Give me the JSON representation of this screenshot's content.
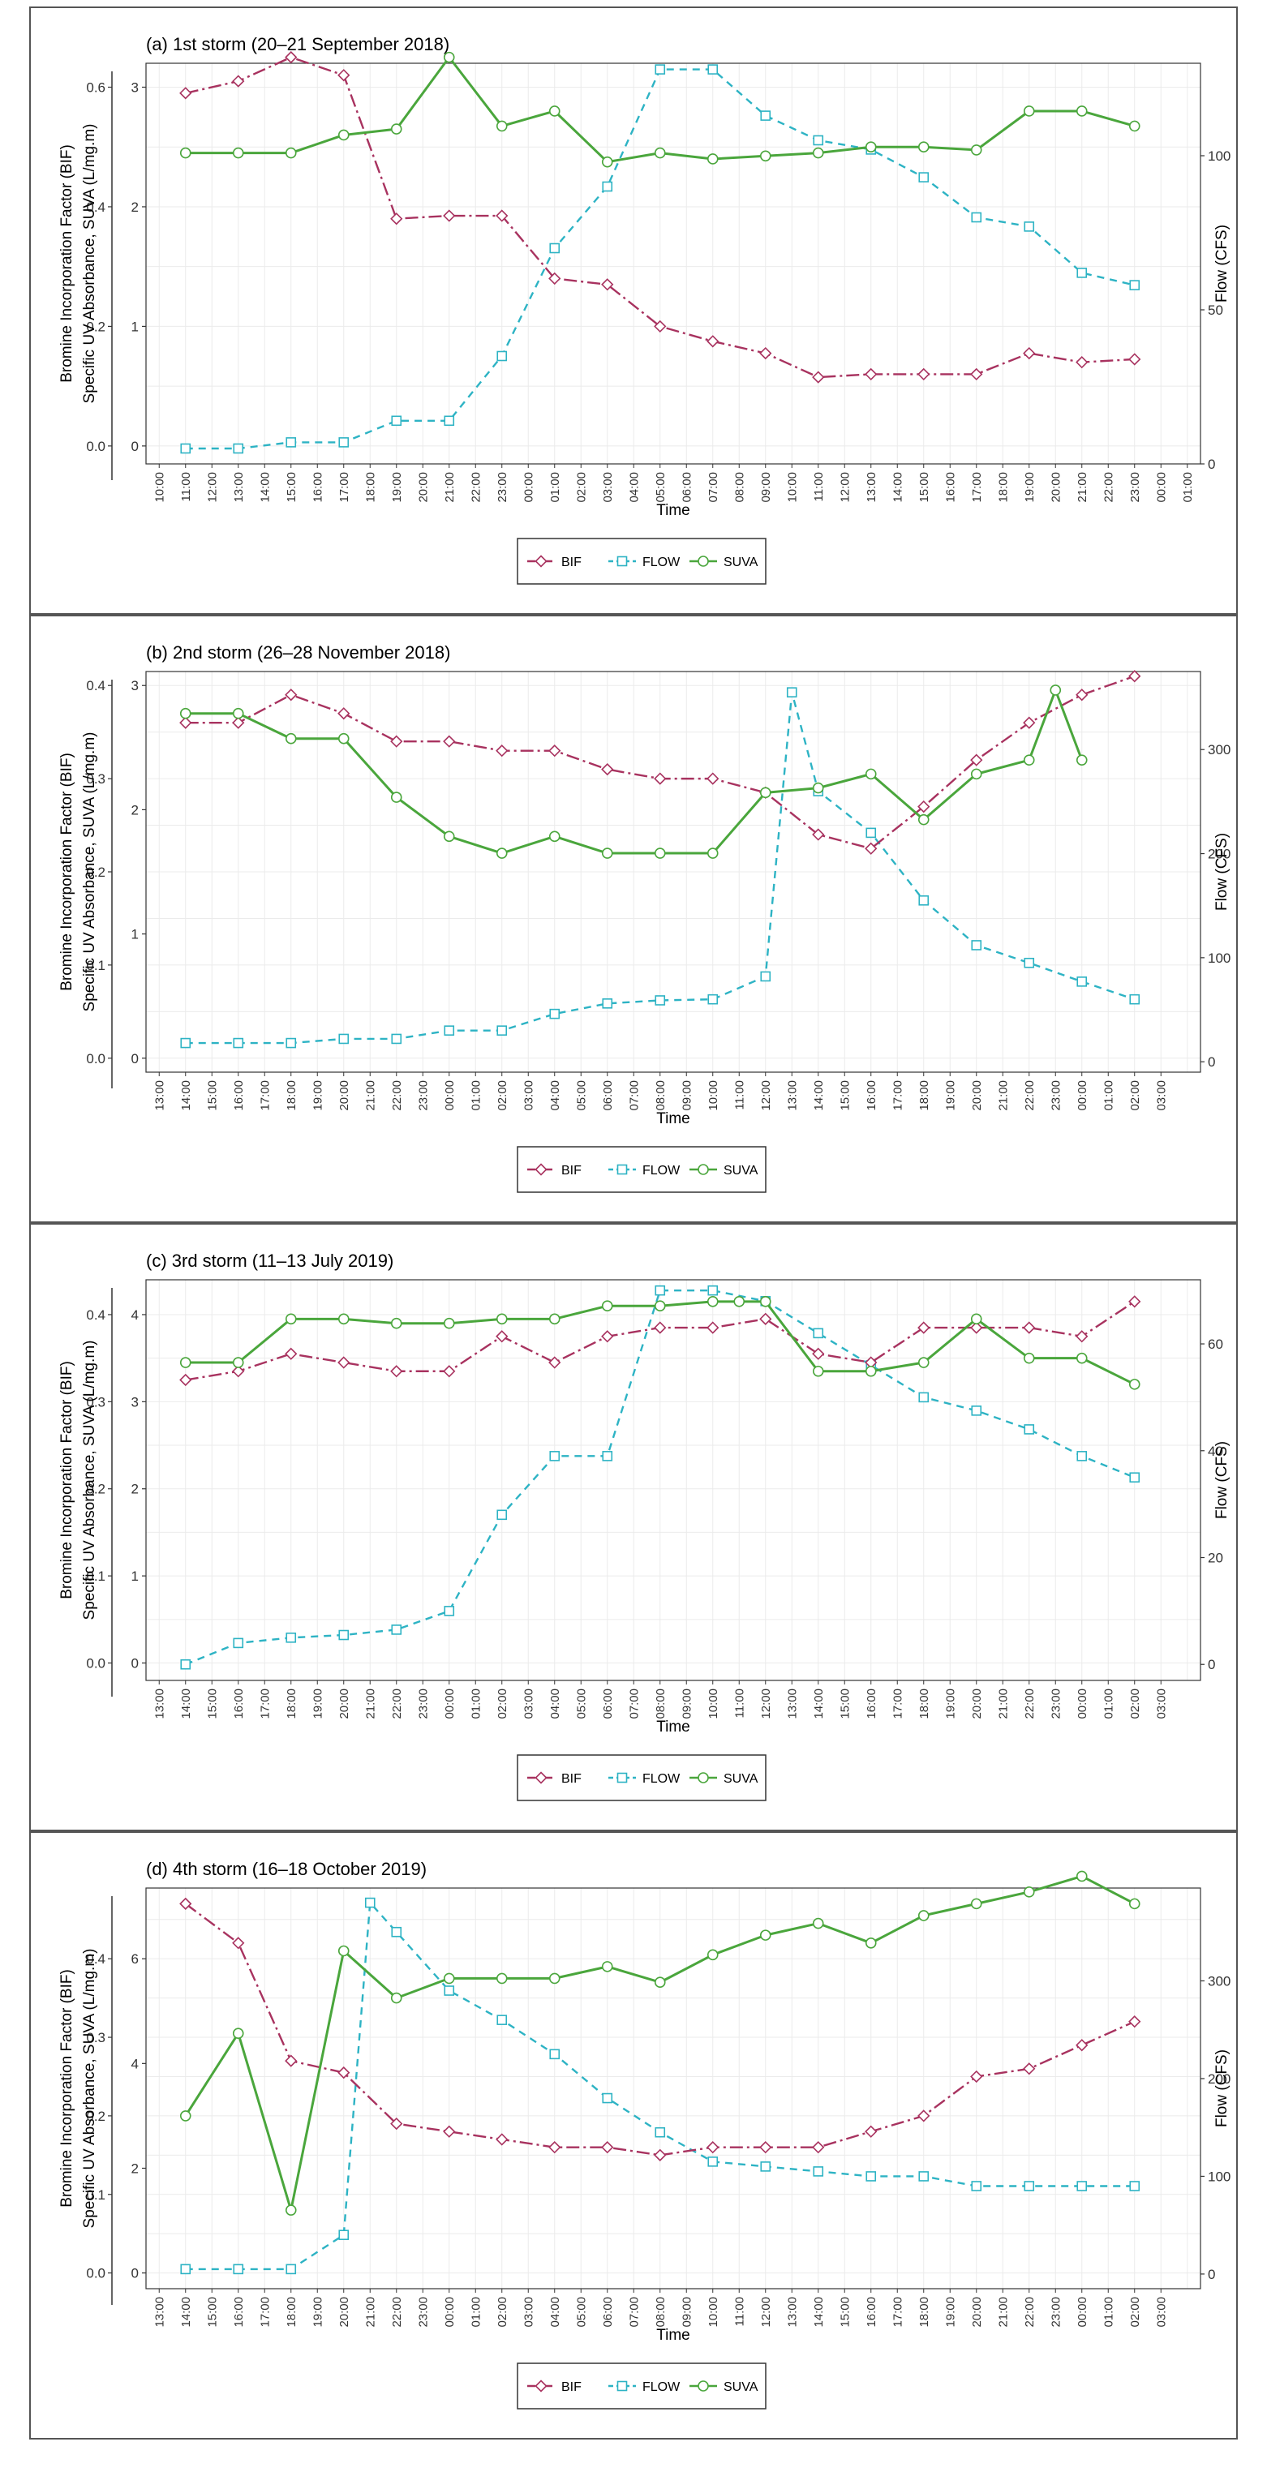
{
  "colors": {
    "BIF": "#a8325f",
    "FLOW": "#2db3c4",
    "SUVA": "#4aa63c"
  },
  "chart_data": [
    {
      "type": "line",
      "title": "(a) 1st storm (20–21 September 2018)",
      "xlabel": "Time",
      "ylabel_left": "Bromine Incorporation Factor (BIF)",
      "ylabel_suva": "Specific UV Absorbance, SUVA (L/mg.m)",
      "ylabel_right": "Flow (CFS)",
      "x_ticks": [
        "10:00",
        "11:00",
        "12:00",
        "13:00",
        "14:00",
        "15:00",
        "16:00",
        "17:00",
        "18:00",
        "19:00",
        "20:00",
        "21:00",
        "22:00",
        "23:00",
        "00:00",
        "01:00",
        "02:00",
        "03:00",
        "04:00",
        "05:00",
        "06:00",
        "07:00",
        "08:00",
        "09:00",
        "10:00",
        "11:00",
        "12:00",
        "13:00",
        "14:00",
        "15:00",
        "16:00",
        "17:00",
        "18:00",
        "19:00",
        "20:00",
        "21:00",
        "22:00",
        "23:00",
        "00:00",
        "01:00"
      ],
      "bif_ylim": [
        -0.03,
        0.64
      ],
      "bif_ticks": [
        "0.0",
        "0.2",
        "0.4",
        "0.6"
      ],
      "suva_ticks": [
        "0",
        "1",
        "2",
        "3"
      ],
      "flow_ylim": [
        0,
        130
      ],
      "flow_ticks": [
        "0",
        "50",
        "100"
      ],
      "series": [
        {
          "name": "BIF",
          "x": [
            1,
            3,
            5,
            7,
            9,
            11,
            13,
            15,
            17,
            19,
            21,
            23,
            25,
            27,
            29,
            31,
            33,
            35,
            37
          ],
          "values": [
            0.59,
            0.61,
            0.65,
            0.62,
            0.38,
            0.385,
            0.385,
            0.28,
            0.27,
            0.2,
            0.175,
            0.155,
            0.115,
            0.12,
            0.12,
            0.12,
            0.155,
            0.14,
            0.145
          ]
        },
        {
          "name": "FLOW",
          "x": [
            1,
            3,
            5,
            7,
            9,
            11,
            13,
            15,
            17,
            19,
            21,
            23,
            25,
            27,
            29,
            31,
            33,
            35,
            37
          ],
          "values": [
            5,
            5,
            7,
            7,
            14,
            14,
            35,
            70,
            90,
            128,
            128,
            113,
            105,
            102,
            93,
            80,
            77,
            62,
            58
          ]
        },
        {
          "name": "SUVA",
          "x": [
            1,
            3,
            5,
            7,
            9,
            11,
            13,
            15,
            17,
            19,
            21,
            23,
            25,
            27,
            29,
            31,
            33,
            35,
            37
          ],
          "values": [
            0.49,
            0.49,
            0.49,
            0.52,
            0.53,
            0.65,
            0.535,
            0.56,
            0.475,
            0.49,
            0.48,
            0.485,
            0.49,
            0.5,
            0.5,
            0.495,
            0.56,
            0.56,
            0.535
          ]
        }
      ],
      "legend": [
        "BIF",
        "FLOW",
        "SUVA"
      ]
    },
    {
      "type": "line",
      "title": "(b) 2nd storm (26–28 November 2018)",
      "xlabel": "Time",
      "ylabel_left": "Bromine Incorporation Factor (BIF)",
      "ylabel_suva": "Specific UV Absorbance, SUVA (L/mg.m)",
      "ylabel_right": "Flow (CFS)",
      "x_ticks": [
        "13:00",
        "14:00",
        "15:00",
        "16:00",
        "17:00",
        "18:00",
        "19:00",
        "20:00",
        "21:00",
        "22:00",
        "23:00",
        "00:00",
        "01:00",
        "02:00",
        "03:00",
        "04:00",
        "05:00",
        "06:00",
        "07:00",
        "08:00",
        "09:00",
        "10:00",
        "11:00",
        "12:00",
        "13:00",
        "14:00",
        "15:00",
        "16:00",
        "17:00",
        "18:00",
        "19:00",
        "20:00",
        "21:00",
        "22:00",
        "23:00",
        "00:00",
        "01:00",
        "02:00",
        "03:00"
      ],
      "bif_ylim": [
        -0.015,
        0.415
      ],
      "bif_ticks": [
        "0.0",
        "0.1",
        "0.2",
        "0.3",
        "0.4"
      ],
      "suva_ticks": [
        "0",
        "1",
        "2",
        "3"
      ],
      "flow_ylim": [
        -10,
        375
      ],
      "flow_ticks": [
        "0",
        "100",
        "200",
        "300"
      ],
      "series": [
        {
          "name": "BIF",
          "x": [
            1,
            3,
            5,
            7,
            9,
            11,
            13,
            15,
            17,
            19,
            21,
            23,
            25,
            27,
            29,
            31,
            33,
            35,
            37
          ],
          "values": [
            0.36,
            0.36,
            0.39,
            0.37,
            0.34,
            0.34,
            0.33,
            0.33,
            0.31,
            0.3,
            0.3,
            0.285,
            0.24,
            0.225,
            0.27,
            0.32,
            0.36,
            0.39,
            0.41
          ]
        },
        {
          "name": "FLOW",
          "x": [
            1,
            3,
            5,
            7,
            9,
            11,
            13,
            15,
            17,
            19,
            21,
            23,
            24,
            25,
            27,
            29,
            31,
            33,
            35,
            37
          ],
          "values": [
            18,
            18,
            18,
            22,
            22,
            30,
            30,
            46,
            56,
            59,
            60,
            82,
            355,
            260,
            220,
            155,
            112,
            95,
            77,
            60
          ]
        },
        {
          "name": "SUVA",
          "x": [
            1,
            3,
            5,
            7,
            9,
            11,
            13,
            15,
            17,
            19,
            21,
            23,
            25,
            27,
            29,
            31,
            33,
            34,
            35
          ],
          "values": [
            0.37,
            0.37,
            0.343,
            0.343,
            0.28,
            0.238,
            0.22,
            0.238,
            0.22,
            0.22,
            0.22,
            0.285,
            0.29,
            0.305,
            0.256,
            0.305,
            0.32,
            0.395,
            0.32
          ]
        }
      ],
      "legend": [
        "BIF",
        "FLOW",
        "SUVA"
      ]
    },
    {
      "type": "line",
      "title": "(c) 3rd storm (11–13 July 2019)",
      "xlabel": "Time",
      "ylabel_left": "Bromine Incorporation Factor (BIF)",
      "ylabel_suva": "Specific UV Absorbance, SUVA (L/mg.m)",
      "ylabel_right": "Flow (CFS)",
      "x_ticks": [
        "13:00",
        "14:00",
        "15:00",
        "16:00",
        "17:00",
        "18:00",
        "19:00",
        "20:00",
        "21:00",
        "22:00",
        "23:00",
        "00:00",
        "01:00",
        "02:00",
        "03:00",
        "04:00",
        "05:00",
        "06:00",
        "07:00",
        "08:00",
        "09:00",
        "10:00",
        "11:00",
        "12:00",
        "13:00",
        "14:00",
        "15:00",
        "16:00",
        "17:00",
        "18:00",
        "19:00",
        "20:00",
        "21:00",
        "22:00",
        "23:00",
        "00:00",
        "01:00",
        "02:00",
        "03:00"
      ],
      "bif_ylim": [
        -0.02,
        0.44
      ],
      "bif_ticks": [
        "0.0",
        "0.1",
        "0.2",
        "0.3",
        "0.4"
      ],
      "suva_ticks": [
        "0",
        "1",
        "2",
        "3",
        "4"
      ],
      "flow_ylim": [
        -3,
        72
      ],
      "flow_ticks": [
        "0",
        "20",
        "40",
        "60"
      ],
      "series": [
        {
          "name": "BIF",
          "x": [
            1,
            3,
            5,
            7,
            9,
            11,
            13,
            15,
            17,
            19,
            21,
            23,
            25,
            27,
            29,
            31,
            33,
            35,
            37
          ],
          "values": [
            0.325,
            0.335,
            0.355,
            0.345,
            0.335,
            0.335,
            0.375,
            0.345,
            0.375,
            0.385,
            0.385,
            0.395,
            0.355,
            0.345,
            0.385,
            0.385,
            0.385,
            0.375,
            0.415
          ]
        },
        {
          "name": "FLOW",
          "x": [
            1,
            3,
            5,
            7,
            9,
            11,
            13,
            15,
            17,
            19,
            21,
            23,
            25,
            27,
            29,
            31,
            33,
            35,
            37
          ],
          "values": [
            0,
            4,
            5,
            5.5,
            6.5,
            10,
            28,
            39,
            39,
            70,
            70,
            68,
            62,
            56,
            50,
            47.5,
            44,
            39,
            35
          ]
        },
        {
          "name": "SUVA",
          "x": [
            1,
            3,
            5,
            7,
            9,
            11,
            13,
            15,
            17,
            19,
            21,
            22,
            23,
            25,
            27,
            29,
            31,
            33,
            35,
            37
          ],
          "values": [
            0.345,
            0.345,
            0.395,
            0.395,
            0.39,
            0.39,
            0.395,
            0.395,
            0.41,
            0.41,
            0.415,
            0.415,
            0.415,
            0.335,
            0.335,
            0.345,
            0.395,
            0.35,
            0.35,
            0.32
          ]
        }
      ],
      "legend": [
        "BIF",
        "FLOW",
        "SUVA"
      ]
    },
    {
      "type": "line",
      "title": "(d) 4th storm (16–18 October 2019)",
      "xlabel": "Time",
      "ylabel_left": "Bromine Incorporation Factor (BIF)",
      "ylabel_suva": "Specific UV Absorbance, SUVA (L/mg.m)",
      "ylabel_right": "Flow (CFS)",
      "x_ticks": [
        "13:00",
        "14:00",
        "15:00",
        "16:00",
        "17:00",
        "18:00",
        "19:00",
        "20:00",
        "21:00",
        "22:00",
        "23:00",
        "00:00",
        "01:00",
        "02:00",
        "03:00",
        "04:00",
        "05:00",
        "06:00",
        "07:00",
        "08:00",
        "09:00",
        "10:00",
        "11:00",
        "12:00",
        "13:00",
        "14:00",
        "15:00",
        "16:00",
        "17:00",
        "18:00",
        "19:00",
        "20:00",
        "21:00",
        "22:00",
        "23:00",
        "00:00",
        "01:00",
        "02:00",
        "03:00"
      ],
      "bif_ylim": [
        -0.02,
        0.49
      ],
      "bif_ticks": [
        "0.0",
        "0.1",
        "0.2",
        "0.3",
        "0.4"
      ],
      "suva_ticks": [
        "0",
        "2",
        "4",
        "6"
      ],
      "flow_ylim": [
        -15,
        395
      ],
      "flow_ticks": [
        "0",
        "100",
        "200",
        "300"
      ],
      "series": [
        {
          "name": "BIF",
          "x": [
            1,
            3,
            5,
            7,
            9,
            11,
            13,
            15,
            17,
            19,
            21,
            23,
            25,
            27,
            29,
            31,
            33,
            35,
            37
          ],
          "values": [
            0.47,
            0.42,
            0.27,
            0.255,
            0.19,
            0.18,
            0.17,
            0.16,
            0.16,
            0.15,
            0.16,
            0.16,
            0.16,
            0.18,
            0.2,
            0.25,
            0.26,
            0.29,
            0.32
          ]
        },
        {
          "name": "FLOW",
          "x": [
            1,
            3,
            5,
            7,
            8,
            9,
            11,
            13,
            15,
            17,
            19,
            21,
            23,
            25,
            27,
            29,
            31,
            33,
            35,
            37
          ],
          "values": [
            5,
            5,
            5,
            40,
            380,
            350,
            290,
            260,
            225,
            180,
            145,
            115,
            110,
            105,
            100,
            100,
            90,
            90,
            90,
            90
          ]
        },
        {
          "name": "SUVA",
          "x": [
            1,
            3,
            5,
            7,
            9,
            11,
            13,
            15,
            17,
            19,
            21,
            23,
            25,
            27,
            29,
            31,
            33,
            35,
            37
          ],
          "values": [
            0.2,
            0.305,
            0.08,
            0.41,
            0.35,
            0.375,
            0.375,
            0.375,
            0.39,
            0.37,
            0.405,
            0.43,
            0.445,
            0.42,
            0.455,
            0.47,
            0.485,
            0.505,
            0.47
          ]
        }
      ],
      "legend": [
        "BIF",
        "FLOW",
        "SUVA"
      ]
    }
  ]
}
